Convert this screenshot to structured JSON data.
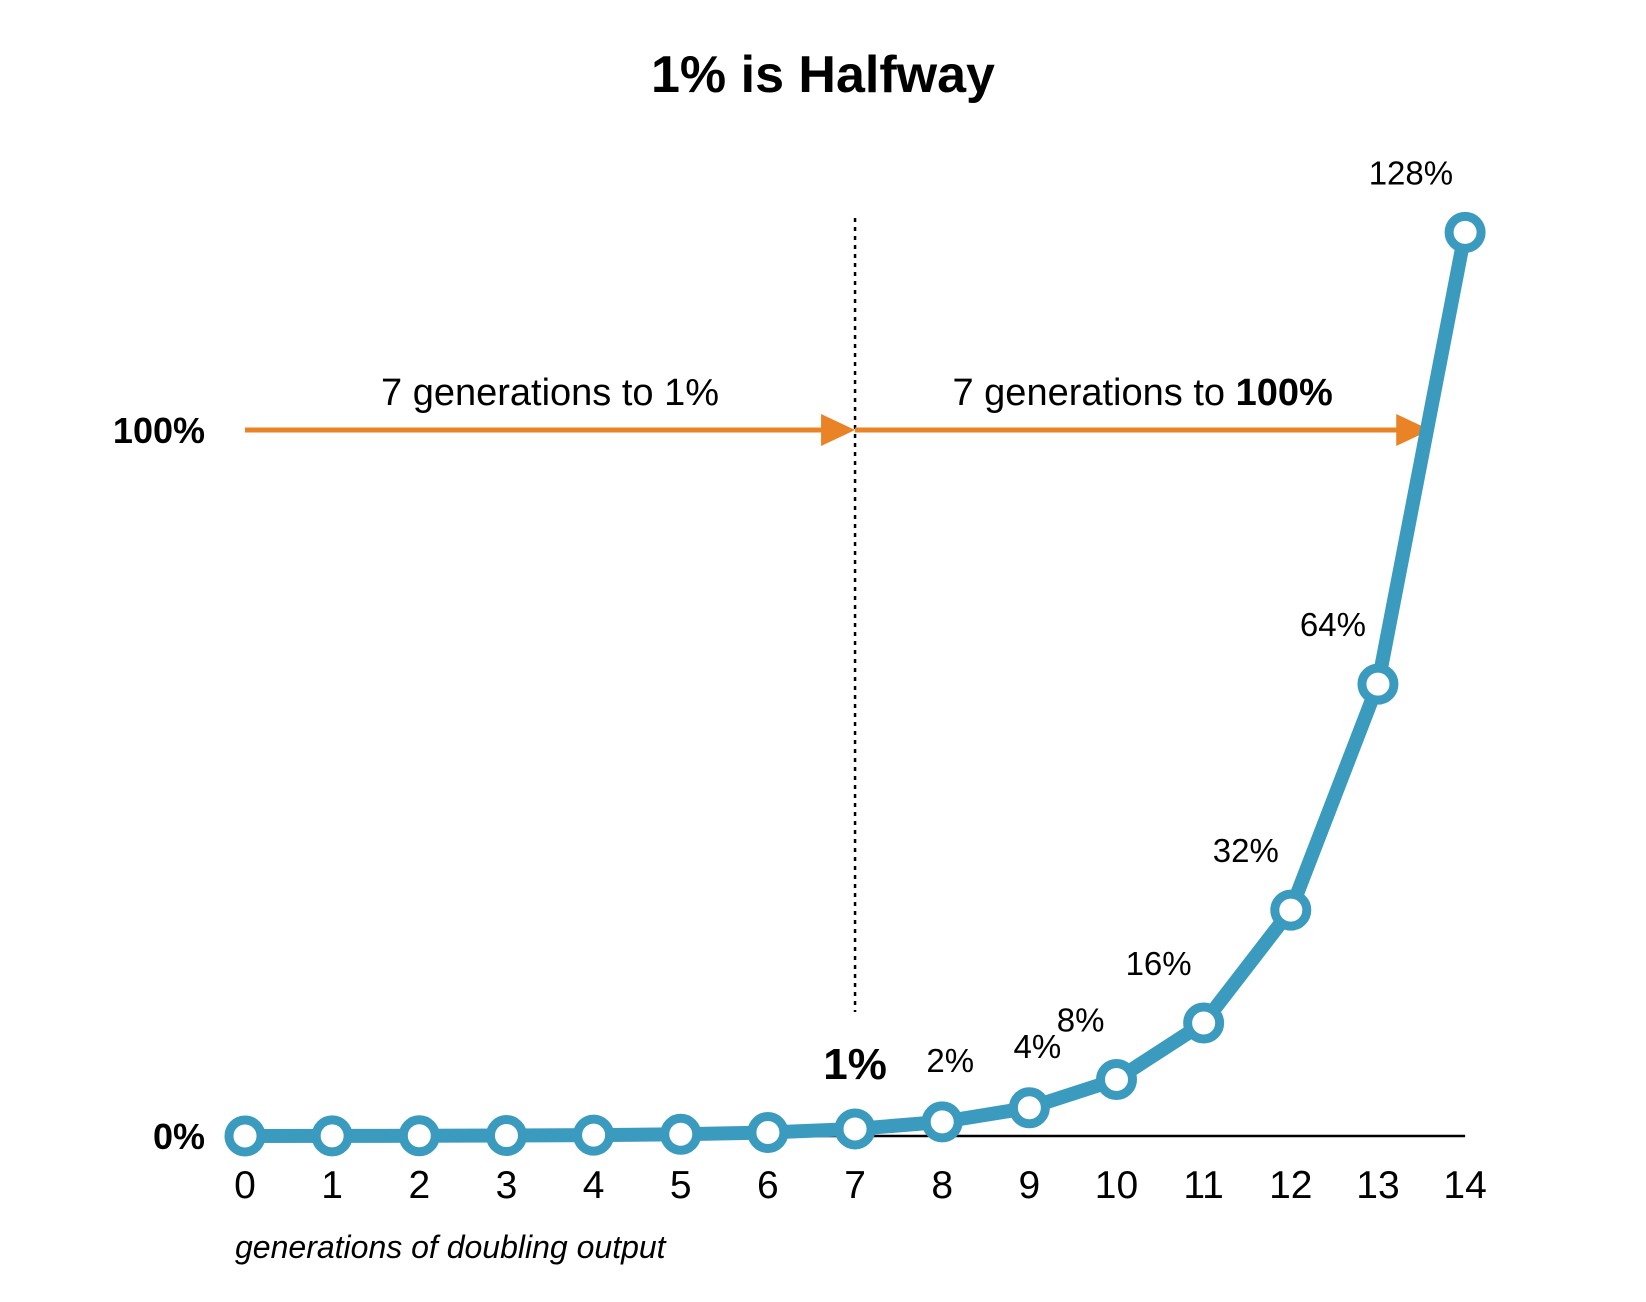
{
  "chart_data": {
    "type": "line",
    "title": "1% is Halfway",
    "xlabel": "generations of doubling output",
    "ylabel": "",
    "x": [
      0,
      1,
      2,
      3,
      4,
      5,
      6,
      7,
      8,
      9,
      10,
      11,
      12,
      13,
      14
    ],
    "series": [
      {
        "values": [
          0.0078125,
          0.015625,
          0.03125,
          0.0625,
          0.125,
          0.25,
          0.5,
          1,
          2,
          4,
          8,
          16,
          32,
          64,
          128
        ]
      }
    ],
    "ylim": [
      0,
      128
    ],
    "y_axis_labels": [
      {
        "value": 0,
        "text": "0%"
      },
      {
        "value": 100,
        "text": "100%"
      }
    ],
    "data_labels": [
      {
        "x": 7,
        "text": "1%",
        "bold": true
      },
      {
        "x": 8,
        "text": "2%"
      },
      {
        "x": 9,
        "text": "4%"
      },
      {
        "x": 10,
        "text": "8%"
      },
      {
        "x": 11,
        "text": "16%"
      },
      {
        "x": 12,
        "text": "32%"
      },
      {
        "x": 13,
        "text": "64%"
      },
      {
        "x": 14,
        "text": "128%"
      }
    ],
    "annotations": {
      "divider_x": 7,
      "arrow_y": 100,
      "arrow_left": {
        "from_x": 0,
        "to_x": 7,
        "text": "7 generations to 1%"
      },
      "arrow_right": {
        "from_x": 7,
        "to_x": 13.6,
        "text_prefix": "7 generations to ",
        "text_bold": "100%"
      }
    },
    "grid": false,
    "legend": "none",
    "colors": {
      "line": "#3b9bbf",
      "arrow": "#e98326",
      "marker_fill": "#ffffff",
      "axis": "#000000"
    }
  }
}
